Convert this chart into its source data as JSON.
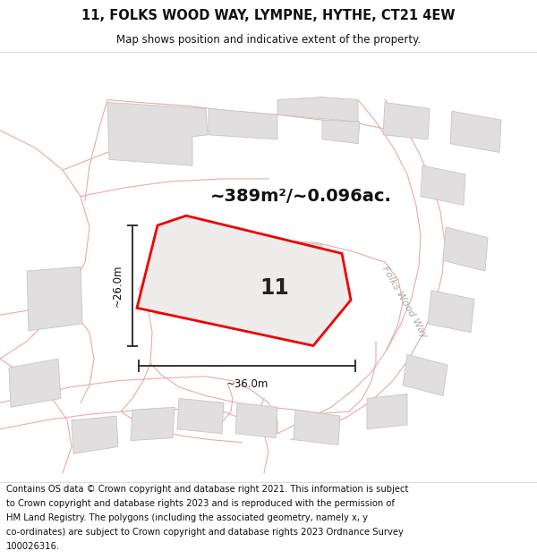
{
  "title_line1": "11, FOLKS WOOD WAY, LYMPNE, HYTHE, CT21 4EW",
  "title_line2": "Map shows position and indicative extent of the property.",
  "area_text": "~389m²/~0.096ac.",
  "label_number": "11",
  "dim_width": "~36.0m",
  "dim_height": "~26.0m",
  "street_label": "Folks Wood Way",
  "footer_lines": [
    "Contains OS data © Crown copyright and database right 2021. This information is subject",
    "to Crown copyright and database rights 2023 and is reproduced with the permission of",
    "HM Land Registry. The polygons (including the associated geometry, namely x, y",
    "co-ordinates) are subject to Crown copyright and database rights 2023 Ordnance Survey",
    "100026316."
  ],
  "map_bg": "#ffffff",
  "road_color": "#e8aaaa",
  "building_fc": "#e0dede",
  "building_ec": "#c8c4c4",
  "red_outline": "#ee0000",
  "prop_fill": "#eeebeb",
  "title_fontsize": 10.5,
  "subtitle_fontsize": 8.5,
  "area_fontsize": 14,
  "number_fontsize": 17,
  "dim_fontsize": 8.5,
  "footer_fontsize": 7.2,
  "street_fontsize": 8.0
}
